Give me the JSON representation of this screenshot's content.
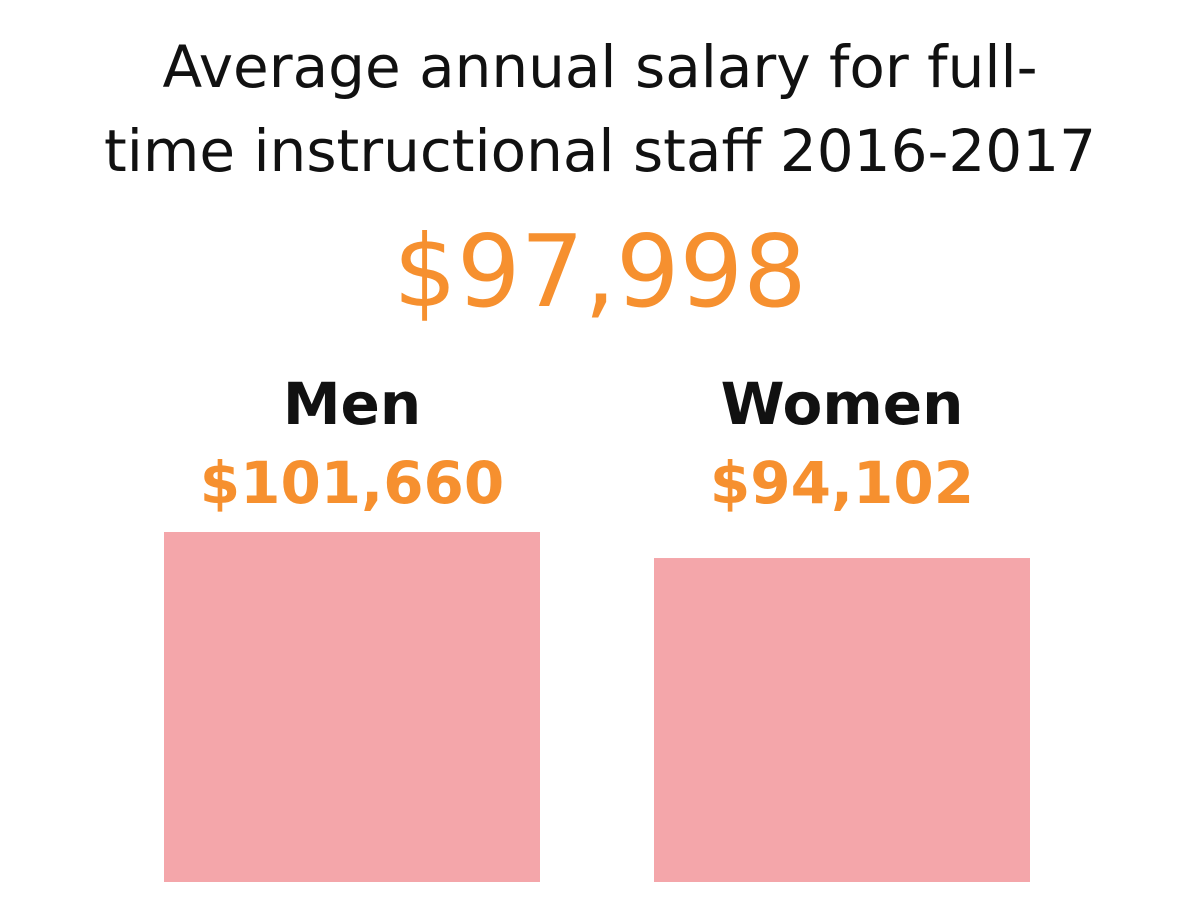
{
  "title_lines": [
    "Average annual salary for full-",
    "time instructional staff 2016-2017"
  ],
  "overall_average": "$97,998",
  "colors": {
    "accent": "#f6902f",
    "bar": "#f4a6aa",
    "text": "#111111"
  },
  "chart_data": {
    "type": "bar",
    "title": "Average annual salary for full-time instructional staff 2016-2017",
    "categories": [
      "Men",
      "Women"
    ],
    "values": [
      101660,
      94102
    ],
    "value_labels": [
      "$101,660",
      "$94,102"
    ],
    "legend": "none",
    "grid": false
  }
}
